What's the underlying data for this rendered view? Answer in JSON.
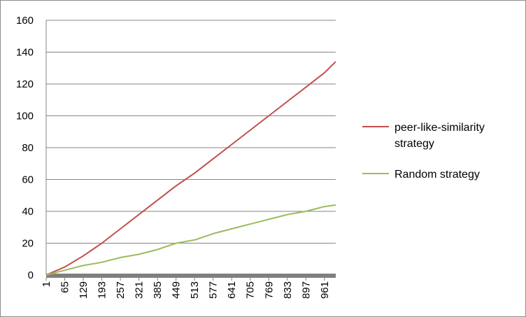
{
  "chart_data": {
    "type": "line",
    "title": "",
    "xlabel": "",
    "ylabel": "",
    "x_tick_labels": [
      "1",
      "65",
      "129",
      "193",
      "257",
      "321",
      "385",
      "449",
      "513",
      "577",
      "641",
      "705",
      "769",
      "833",
      "897",
      "961"
    ],
    "x_range": [
      1,
      1000
    ],
    "y_tick_labels": [
      "0",
      "20",
      "40",
      "60",
      "80",
      "100",
      "120",
      "140",
      "160"
    ],
    "ylim": [
      0,
      160
    ],
    "grid": "horizontal",
    "legend_position": "right",
    "series": [
      {
        "name": "peer-like-similarity strategy",
        "color": "#c0504d",
        "x": [
          1,
          65,
          129,
          193,
          257,
          321,
          385,
          449,
          513,
          577,
          641,
          705,
          769,
          833,
          897,
          961,
          1000
        ],
        "values": [
          0,
          5,
          12,
          20,
          29,
          38,
          47,
          56,
          64,
          73,
          82,
          91,
          100,
          109,
          118,
          127,
          134
        ]
      },
      {
        "name": "Random strategy",
        "color": "#9bbb59",
        "x": [
          1,
          65,
          129,
          193,
          257,
          321,
          385,
          449,
          513,
          577,
          641,
          705,
          769,
          833,
          897,
          961,
          1000
        ],
        "values": [
          0,
          3,
          6,
          8,
          11,
          13,
          16,
          20,
          22,
          26,
          29,
          32,
          35,
          38,
          40,
          43,
          44
        ]
      }
    ]
  }
}
